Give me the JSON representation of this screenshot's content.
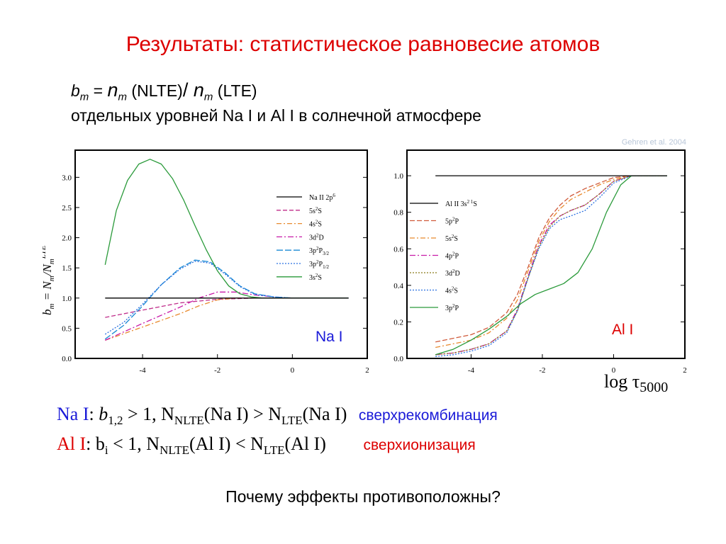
{
  "title": "Результаты: статистическое равновесие атомов",
  "formula": {
    "b": "b",
    "b_sub": "m",
    "eq": " = ",
    "n": "n",
    "n_sub": "m",
    "nlte": " (NLTE)",
    "slash": "/ ",
    "n2": "n",
    "n2_sub": "m",
    "lte": " (LTE)"
  },
  "subtitle": "отдельных уровней Na I и Al I в солнечной атмосфере",
  "credit": "Gehren et al. 2004",
  "xaxis_label": {
    "log": "log ",
    "tau": "τ",
    "sub": "5000"
  },
  "conclusions": {
    "na": {
      "element": "Na I",
      "colon": ":  ",
      "b": "b",
      "b_sub": "1,2",
      "ineq": " > 1,    N",
      "nlte_sub": "NLTE",
      "mid": "(Na I)  >  N",
      "lte_sub": "LTE",
      "end": "(Na I)",
      "note": "сверхрекомбинация"
    },
    "al": {
      "element": "Al I",
      "colon": ":   ",
      "b": "b",
      "b_sub": "i",
      "ineq": " < 1,    N",
      "nlte_sub": "NLTE",
      "mid": "(Al I)  <  N",
      "lte_sub": "LTE",
      "end": "(Al I)",
      "note": "сверхионизация"
    }
  },
  "question": "Почему эффекты противоположны?",
  "chart_data": [
    {
      "type": "line",
      "label": "Na I",
      "xlim": [
        -5.8,
        2
      ],
      "ylim": [
        0,
        3.45
      ],
      "xticks": [
        -4,
        -2,
        0,
        2
      ],
      "yticks": [
        0.0,
        0.5,
        1.0,
        1.5,
        2.0,
        2.5,
        3.0
      ],
      "ylabel": {
        "b": "b",
        "b_sub": "m",
        "eq": " = N",
        "n_sub": "m",
        "slash": "/N",
        "d_sub": "m",
        "sup": "LTE"
      },
      "series": [
        {
          "name": "Na II 2p",
          "sup": "6",
          "sub": "",
          "color": "#000000",
          "dash": "",
          "x": [
            -5,
            1.5
          ],
          "y": [
            1.0,
            1.0
          ]
        },
        {
          "name": "5s",
          "sup": "2",
          "tail": "S",
          "sub": "",
          "color": "#c02c8a",
          "dash": "6,3",
          "x": [
            -5,
            -4,
            -3,
            -2,
            -1,
            0,
            1,
            1.5
          ],
          "y": [
            0.68,
            0.8,
            0.92,
            0.98,
            1.0,
            1.0,
            1.0,
            1.0
          ]
        },
        {
          "name": "4s",
          "sup": "2",
          "tail": "S",
          "sub": "",
          "color": "#e88a2e",
          "dash": "7,3,2,3",
          "x": [
            -5,
            -4,
            -3,
            -2.5,
            -2,
            -1.5,
            -1,
            0,
            1,
            1.5
          ],
          "y": [
            0.3,
            0.52,
            0.74,
            0.87,
            0.97,
            1.0,
            1.0,
            1.0,
            1.0,
            1.0
          ]
        },
        {
          "name": "3d",
          "sup": "2",
          "tail": "D",
          "sub": "",
          "color": "#c81aa8",
          "dash": "8,3,2,3",
          "x": [
            -5,
            -4,
            -3,
            -2.5,
            -2,
            -1.5,
            -1,
            -0.5,
            0,
            1,
            1.5
          ],
          "y": [
            0.3,
            0.58,
            0.85,
            1.0,
            1.1,
            1.1,
            1.05,
            1.02,
            1.0,
            1.0,
            1.0
          ]
        },
        {
          "name": "3p",
          "sup": "2",
          "tail": "P",
          "sub": "3/2",
          "color": "#1a8ad4",
          "dash": "9,3",
          "x": [
            -5,
            -4.5,
            -4,
            -3.5,
            -3,
            -2.6,
            -2.2,
            -1.8,
            -1.4,
            -1,
            -0.5,
            0,
            1,
            1.5
          ],
          "y": [
            0.32,
            0.55,
            0.87,
            1.22,
            1.5,
            1.63,
            1.6,
            1.42,
            1.2,
            1.07,
            1.02,
            1.0,
            1.0,
            1.0
          ]
        },
        {
          "name": "3p",
          "sup": "2",
          "tail": "P",
          "sub": "1/2",
          "color": "#2a70e0",
          "dash": "2,2",
          "x": [
            -5,
            -4.5,
            -4,
            -3.5,
            -3,
            -2.6,
            -2.2,
            -1.8,
            -1.4,
            -1,
            -0.5,
            0,
            1,
            1.5
          ],
          "y": [
            0.4,
            0.6,
            0.9,
            1.22,
            1.48,
            1.61,
            1.58,
            1.4,
            1.19,
            1.06,
            1.02,
            1.0,
            1.0,
            1.0
          ]
        },
        {
          "name": "3s",
          "sup": "2",
          "tail": "S",
          "sub": "",
          "color": "#2a9a3a",
          "dash": "",
          "x": [
            -5,
            -4.7,
            -4.4,
            -4.1,
            -3.8,
            -3.5,
            -3.2,
            -2.9,
            -2.6,
            -2.3,
            -2.0,
            -1.7,
            -1.4,
            -1.1,
            -0.8,
            -0.5,
            0,
            1,
            1.5
          ],
          "y": [
            1.55,
            2.45,
            2.95,
            3.22,
            3.3,
            3.22,
            2.98,
            2.62,
            2.2,
            1.8,
            1.45,
            1.2,
            1.07,
            1.02,
            1.0,
            1.0,
            1.0,
            1.0,
            1.0
          ]
        }
      ]
    },
    {
      "type": "line",
      "label": "Al I",
      "xlim": [
        -5.8,
        2
      ],
      "ylim": [
        0,
        1.14
      ],
      "xticks": [
        -4,
        -2,
        0,
        2
      ],
      "yticks": [
        0.0,
        0.2,
        0.4,
        0.6,
        0.8,
        1.0
      ],
      "series": [
        {
          "name": "Al II 3s",
          "sup": "2 1",
          "tail": "S",
          "sub": "",
          "color": "#000000",
          "dash": "",
          "x": [
            -5,
            1.5
          ],
          "y": [
            1.0,
            1.0
          ]
        },
        {
          "name": "5p",
          "sup": "2",
          "tail": "P",
          "sub": "",
          "color": "#d05a3a",
          "dash": "7,3",
          "x": [
            -5,
            -4.5,
            -4,
            -3.5,
            -3,
            -2.7,
            -2.4,
            -2.1,
            -1.8,
            -1.5,
            -1.2,
            -0.8,
            -0.4,
            0,
            0.5,
            1,
            1.5
          ],
          "y": [
            0.09,
            0.11,
            0.13,
            0.17,
            0.25,
            0.35,
            0.5,
            0.66,
            0.77,
            0.84,
            0.89,
            0.93,
            0.96,
            0.99,
            1.0,
            1.0,
            1.0
          ]
        },
        {
          "name": "5s",
          "sup": "2",
          "tail": "S",
          "sub": "",
          "color": "#e88a2e",
          "dash": "7,3,2,3",
          "x": [
            -5,
            -4.5,
            -4,
            -3.5,
            -3,
            -2.7,
            -2.4,
            -2.1,
            -1.8,
            -1.5,
            -1.2,
            -0.8,
            -0.4,
            0,
            0.5,
            1,
            1.5
          ],
          "y": [
            0.06,
            0.08,
            0.1,
            0.14,
            0.22,
            0.32,
            0.48,
            0.64,
            0.75,
            0.82,
            0.87,
            0.91,
            0.95,
            0.98,
            1.0,
            1.0,
            1.0
          ]
        },
        {
          "name": "4p",
          "sup": "2",
          "tail": "P",
          "sub": "",
          "color": "#c81aa8",
          "dash": "8,3,2,3",
          "x": [
            -5,
            -4.5,
            -4,
            -3.5,
            -3,
            -2.7,
            -2.4,
            -2.1,
            -1.8,
            -1.5,
            -1.2,
            -0.8,
            -0.4,
            0,
            0.5,
            1,
            1.5
          ],
          "y": [
            0.02,
            0.03,
            0.05,
            0.08,
            0.15,
            0.27,
            0.45,
            0.62,
            0.73,
            0.78,
            0.81,
            0.84,
            0.9,
            0.97,
            1.0,
            1.0,
            1.0
          ]
        },
        {
          "name": "3d",
          "sup": "2",
          "tail": "D",
          "sub": "",
          "color": "#8a7a1a",
          "dash": "2,2",
          "x": [
            -5,
            -4.5,
            -4,
            -3.5,
            -3,
            -2.7,
            -2.4,
            -2.1,
            -1.8,
            -1.5,
            -1.2,
            -0.8,
            -0.4,
            0,
            0.5,
            1,
            1.5
          ],
          "y": [
            0.02,
            0.03,
            0.05,
            0.08,
            0.15,
            0.26,
            0.44,
            0.61,
            0.72,
            0.78,
            0.81,
            0.84,
            0.9,
            0.97,
            1.0,
            1.0,
            1.0
          ]
        },
        {
          "name": "4s",
          "sup": "2",
          "tail": "S",
          "sub": "",
          "color": "#2a70e0",
          "dash": "2,2",
          "x": [
            -5,
            -4.5,
            -4,
            -3.5,
            -3,
            -2.7,
            -2.4,
            -2.1,
            -1.8,
            -1.5,
            -1.2,
            -0.8,
            -0.4,
            0,
            0.5,
            1,
            1.5
          ],
          "y": [
            0.01,
            0.02,
            0.04,
            0.07,
            0.14,
            0.26,
            0.44,
            0.6,
            0.71,
            0.76,
            0.78,
            0.81,
            0.88,
            0.96,
            1.0,
            1.0,
            1.0
          ]
        },
        {
          "name": "3p",
          "sup": "2",
          "tail": "P",
          "sub": "",
          "color": "#2a9a3a",
          "dash": "",
          "x": [
            -5,
            -4.5,
            -4,
            -3.5,
            -3,
            -2.6,
            -2.2,
            -1.8,
            -1.4,
            -1,
            -0.6,
            -0.2,
            0.2,
            0.5,
            1,
            1.5
          ],
          "y": [
            0.02,
            0.05,
            0.1,
            0.16,
            0.23,
            0.3,
            0.35,
            0.38,
            0.41,
            0.47,
            0.6,
            0.8,
            0.95,
            1.0,
            1.0,
            1.0
          ]
        }
      ]
    }
  ]
}
